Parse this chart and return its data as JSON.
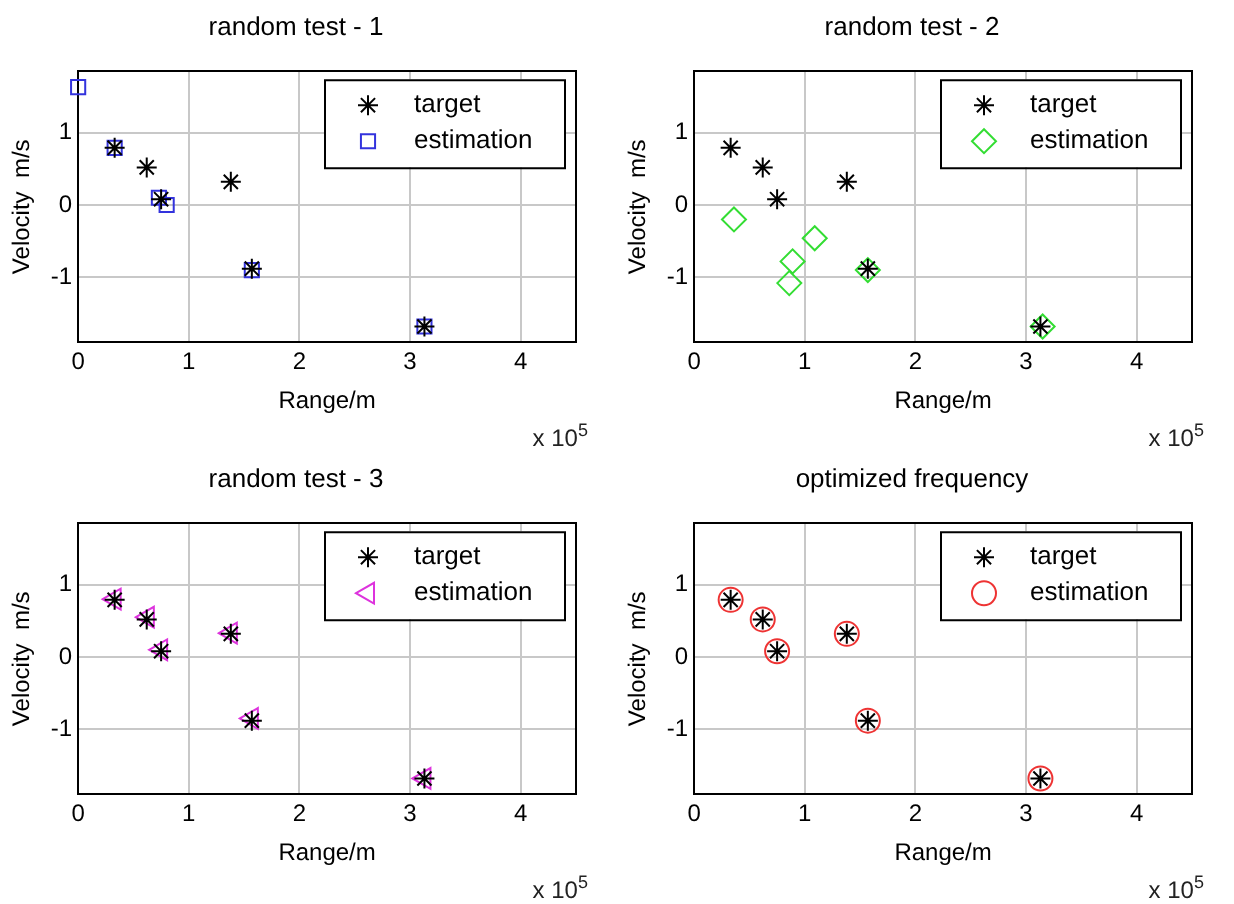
{
  "chart_data": [
    {
      "type": "scatter",
      "title": "random test - 1",
      "xlabel": "Range/m",
      "ylabel": "Velocity  m/s",
      "annotations": [
        "x 10$^{5}$"
      ],
      "xlim": [
        0,
        4.5
      ],
      "xticks": [
        0,
        1,
        2,
        3,
        4
      ],
      "ylim": [
        -1.9,
        1.85
      ],
      "yticks": [
        -1,
        0,
        1
      ],
      "grid": true,
      "legend": "top right",
      "series": [
        {
          "name": "target",
          "color": "#000000",
          "marker": "cross",
          "x": [
            0.33,
            0.62,
            0.75,
            1.38,
            1.57,
            3.13
          ],
          "values": [
            0.79,
            0.52,
            0.08,
            0.32,
            -0.88,
            -1.68
          ]
        },
        {
          "name": "estimation",
          "color": "#3333dd",
          "marker": "square",
          "x": [
            0.0,
            0.33,
            0.73,
            0.8,
            1.57,
            3.13
          ],
          "values": [
            1.63,
            0.79,
            0.1,
            0.0,
            -0.9,
            -1.68
          ]
        }
      ]
    },
    {
      "type": "scatter",
      "title": "random test - 2",
      "xlabel": "Range/m",
      "ylabel": "Velocity  m/s",
      "annotations": [
        "x 10$^{5}$"
      ],
      "xlim": [
        0,
        4.5
      ],
      "xticks": [
        0,
        1,
        2,
        3,
        4
      ],
      "ylim": [
        -1.9,
        1.85
      ],
      "yticks": [
        -1,
        0,
        1
      ],
      "grid": true,
      "legend": "top right",
      "series": [
        {
          "name": "target",
          "color": "#000000",
          "marker": "cross",
          "x": [
            0.33,
            0.62,
            0.75,
            1.38,
            1.57,
            3.13
          ],
          "values": [
            0.79,
            0.52,
            0.08,
            0.32,
            -0.88,
            -1.68
          ]
        },
        {
          "name": "estimation",
          "color": "#33dd33",
          "marker": "diamond",
          "x": [
            0.36,
            0.89,
            0.86,
            1.09,
            1.57,
            3.15
          ],
          "values": [
            -0.2,
            -0.78,
            -1.08,
            -0.46,
            -0.9,
            -1.68
          ]
        }
      ]
    },
    {
      "type": "scatter",
      "title": "random test - 3",
      "xlabel": "Range/m",
      "ylabel": "Velocity  m/s",
      "annotations": [
        "x 10$^{5}$"
      ],
      "xlim": [
        0,
        4.5
      ],
      "xticks": [
        0,
        1,
        2,
        3,
        4
      ],
      "ylim": [
        -1.9,
        1.85
      ],
      "yticks": [
        -1,
        0,
        1
      ],
      "grid": true,
      "legend": "top right",
      "series": [
        {
          "name": "target",
          "color": "#000000",
          "marker": "cross",
          "x": [
            0.33,
            0.62,
            0.75,
            1.38,
            1.57,
            3.13
          ],
          "values": [
            0.79,
            0.52,
            0.08,
            0.32,
            -0.88,
            -1.68
          ]
        },
        {
          "name": "estimation",
          "color": "#dd33dd",
          "marker": "triangle",
          "x": [
            0.33,
            0.63,
            0.75,
            1.38,
            1.57,
            3.13
          ],
          "values": [
            0.8,
            0.55,
            0.1,
            0.33,
            -0.85,
            -1.68
          ]
        }
      ]
    },
    {
      "type": "scatter",
      "title": "optimized frequency",
      "xlabel": "Range/m",
      "ylabel": "Velocity  m/s",
      "annotations": [
        "x 10$^{5}$"
      ],
      "xlim": [
        0,
        4.5
      ],
      "xticks": [
        0,
        1,
        2,
        3,
        4
      ],
      "ylim": [
        -1.9,
        1.85
      ],
      "yticks": [
        -1,
        0,
        1
      ],
      "grid": true,
      "legend": "top right",
      "series": [
        {
          "name": "target",
          "color": "#000000",
          "marker": "cross",
          "x": [
            0.33,
            0.62,
            0.75,
            1.38,
            1.57,
            3.13
          ],
          "values": [
            0.79,
            0.52,
            0.08,
            0.32,
            -0.88,
            -1.68
          ]
        },
        {
          "name": "estimation",
          "color": "#ee3333",
          "marker": "circle",
          "x": [
            0.33,
            0.62,
            0.75,
            1.38,
            1.57,
            3.13
          ],
          "values": [
            0.79,
            0.52,
            0.08,
            0.32,
            -0.88,
            -1.68
          ]
        }
      ]
    }
  ]
}
